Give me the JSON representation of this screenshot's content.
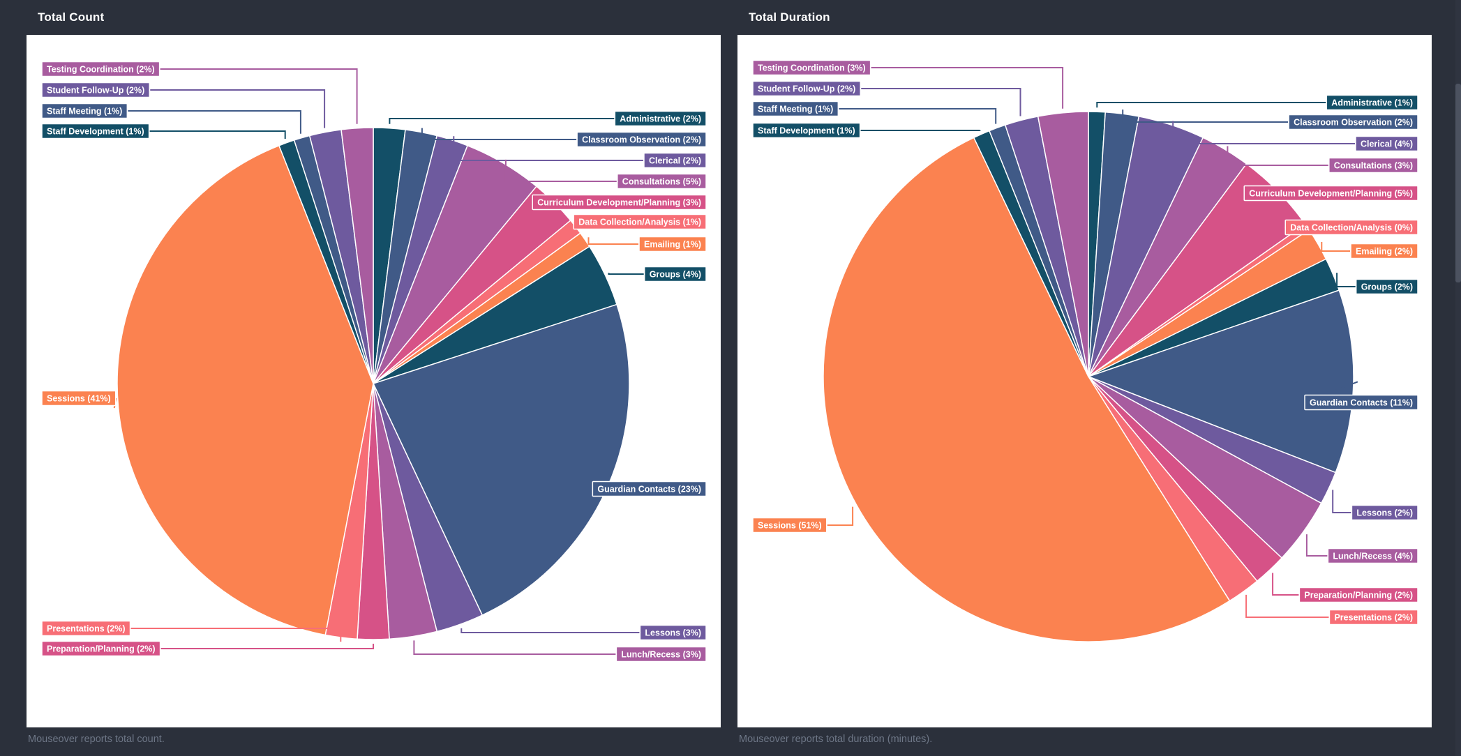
{
  "page": {
    "background": "#2b303b"
  },
  "palette": [
    "#134f67",
    "#405a87",
    "#6e5a9e",
    "#a85c9f",
    "#d65287",
    "#f76e76",
    "#fb8250"
  ],
  "charts": [
    {
      "title": "Total Count",
      "caption": "Mouseover reports total count.",
      "chart_data": {
        "type": "pie",
        "start": "top",
        "direction": "clockwise",
        "unit": "percent",
        "slices": [
          {
            "label": "Administrative",
            "pct": 2
          },
          {
            "label": "Classroom Observation",
            "pct": 2
          },
          {
            "label": "Clerical",
            "pct": 2
          },
          {
            "label": "Consultations",
            "pct": 5
          },
          {
            "label": "Curriculum Development/Planning",
            "pct": 3
          },
          {
            "label": "Data Collection/Analysis",
            "pct": 1
          },
          {
            "label": "Emailing",
            "pct": 1
          },
          {
            "label": "Groups",
            "pct": 4
          },
          {
            "label": "Guardian Contacts",
            "pct": 23
          },
          {
            "label": "Lessons",
            "pct": 3
          },
          {
            "label": "Lunch/Recess",
            "pct": 3
          },
          {
            "label": "Preparation/Planning",
            "pct": 2
          },
          {
            "label": "Presentations",
            "pct": 2
          },
          {
            "label": "Sessions",
            "pct": 41
          },
          {
            "label": "Staff Development",
            "pct": 1
          },
          {
            "label": "Staff Meeting",
            "pct": 1
          },
          {
            "label": "Student Follow-Up",
            "pct": 2
          },
          {
            "label": "Testing Coordination",
            "pct": 2
          }
        ]
      }
    },
    {
      "title": "Total Duration",
      "caption": "Mouseover reports total duration (minutes).",
      "chart_data": {
        "type": "pie",
        "start": "top",
        "direction": "clockwise",
        "unit": "percent",
        "slices": [
          {
            "label": "Administrative",
            "pct": 1
          },
          {
            "label": "Classroom Observation",
            "pct": 2
          },
          {
            "label": "Clerical",
            "pct": 4
          },
          {
            "label": "Consultations",
            "pct": 3
          },
          {
            "label": "Curriculum Development/Planning",
            "pct": 5
          },
          {
            "label": "Data Collection/Analysis",
            "pct": 0
          },
          {
            "label": "Emailing",
            "pct": 2
          },
          {
            "label": "Groups",
            "pct": 2
          },
          {
            "label": "Guardian Contacts",
            "pct": 11
          },
          {
            "label": "Lessons",
            "pct": 2
          },
          {
            "label": "Lunch/Recess",
            "pct": 4
          },
          {
            "label": "Preparation/Planning",
            "pct": 2
          },
          {
            "label": "Presentations",
            "pct": 2
          },
          {
            "label": "Sessions",
            "pct": 51
          },
          {
            "label": "Staff Development",
            "pct": 1
          },
          {
            "label": "Staff Meeting",
            "pct": 1
          },
          {
            "label": "Student Follow-Up",
            "pct": 2
          },
          {
            "label": "Testing Coordination",
            "pct": 3
          }
        ]
      }
    }
  ]
}
